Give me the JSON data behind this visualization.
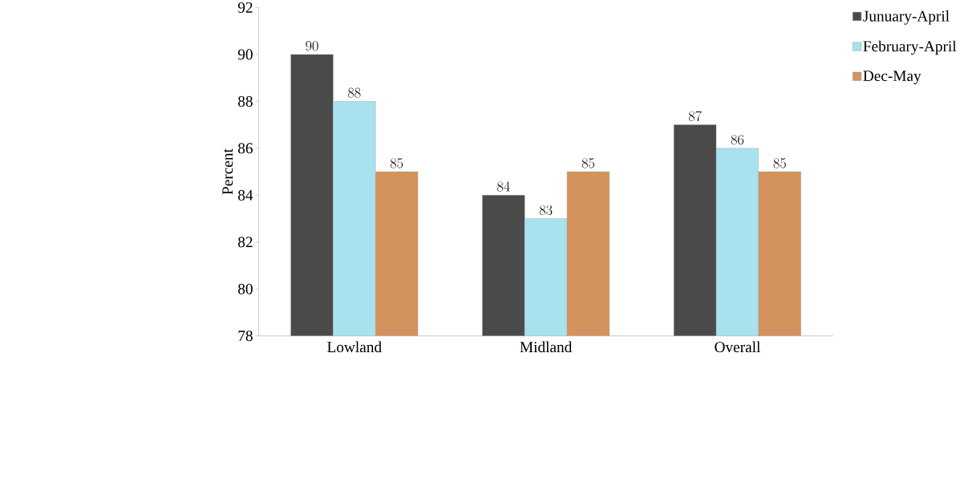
{
  "chart_data": {
    "type": "bar",
    "ylabel": "Percent",
    "categories": [
      "Lowland",
      "Midland",
      "Overall"
    ],
    "series": [
      {
        "name": "Junuary-April",
        "color": "#4a4a4a",
        "values": [
          90,
          84,
          87
        ]
      },
      {
        "name": "February-April",
        "color": "#a8e2ee",
        "values": [
          88,
          83,
          86
        ]
      },
      {
        "name": "Dec-May",
        "color": "#d4925c",
        "values": [
          85,
          85,
          85
        ]
      }
    ],
    "ylim": [
      78,
      92
    ],
    "yticks": [
      78,
      80,
      82,
      84,
      86,
      88,
      90,
      92
    ],
    "data_labels": true,
    "legend": "top right",
    "grid": false
  }
}
